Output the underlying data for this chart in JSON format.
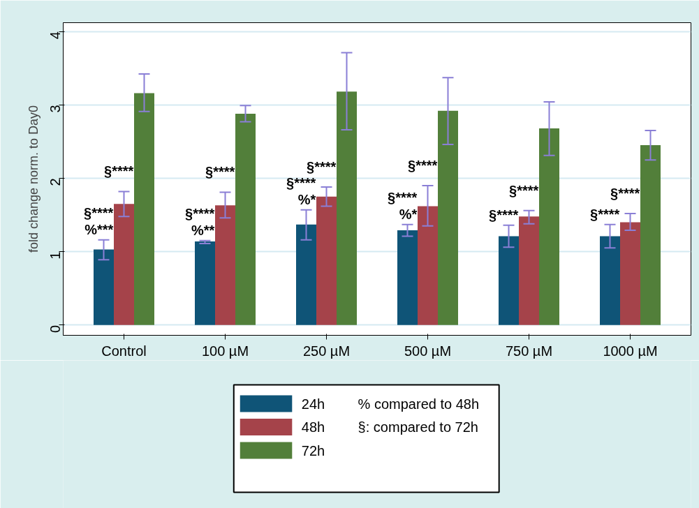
{
  "chart_data": {
    "type": "bar",
    "ylabel": "fold change norm. to Day0",
    "categories": [
      "Control",
      "100 µM",
      "250 µM",
      "500 µM",
      "750 µM",
      "1000 µM"
    ],
    "series": [
      {
        "name": "24h",
        "color": "#0f5477",
        "values": [
          1.03,
          1.14,
          1.37,
          1.29,
          1.21,
          1.21
        ],
        "errors": [
          [
            0.89,
            1.16
          ],
          [
            1.11,
            1.15
          ],
          [
            1.16,
            1.57
          ],
          [
            1.21,
            1.37
          ],
          [
            1.06,
            1.36
          ],
          [
            1.05,
            1.37
          ]
        ]
      },
      {
        "name": "48h",
        "color": "#a5434a",
        "values": [
          1.65,
          1.63,
          1.75,
          1.62,
          1.48,
          1.4
        ],
        "errors": [
          [
            1.48,
            1.82
          ],
          [
            1.46,
            1.81
          ],
          [
            1.62,
            1.88
          ],
          [
            1.35,
            1.9
          ],
          [
            1.38,
            1.56
          ],
          [
            1.29,
            1.52
          ]
        ]
      },
      {
        "name": "72h",
        "color": "#527f3a",
        "values": [
          3.16,
          2.88,
          3.18,
          2.92,
          2.68,
          2.45
        ],
        "errors": [
          [
            2.91,
            3.42
          ],
          [
            2.77,
            2.99
          ],
          [
            2.66,
            3.71
          ],
          [
            2.46,
            3.37
          ],
          [
            2.31,
            3.04
          ],
          [
            2.25,
            2.65
          ]
        ]
      }
    ],
    "ylim": [
      -0.14,
      4.12
    ],
    "yticks": [
      0,
      1,
      2,
      3,
      4
    ],
    "grid": "y",
    "legend": "bottom",
    "annotations": [
      "§****",
      "%***",
      "§****",
      "§****",
      "%**",
      "§****",
      "§****",
      "%*",
      "§****",
      "§****",
      "%*",
      "§****",
      "§****",
      "§****",
      "§****",
      "§****",
      "% compared to 48h",
      "§: compared to 72h"
    ]
  }
}
